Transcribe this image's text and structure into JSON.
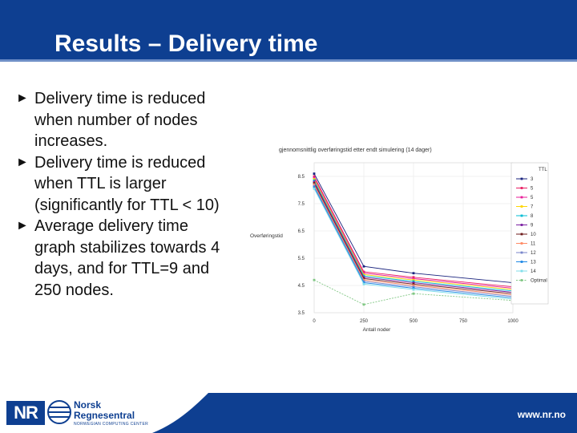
{
  "slide": {
    "title": "Results – Delivery time",
    "bullets": [
      {
        "lines": [
          "Delivery time is reduced",
          "when number of nodes",
          "increases."
        ]
      },
      {
        "lines": [
          "Delivery time is reduced",
          "when TTL is larger",
          "(significantly for TTL < 10)"
        ]
      },
      {
        "lines": [
          "Average delivery time",
          "graph stabilizes towards 4",
          "days, and for TTL=9 and",
          "250 nodes."
        ]
      }
    ],
    "bullet_marker": "►"
  },
  "footer": {
    "logo_text": "NR",
    "logo_name_line1": "Norsk",
    "logo_name_line2": "Regnesentral",
    "logo_sub": "NORWEGIAN COMPUTING CENTER",
    "website": "www.nr.no",
    "brand_color": "#0e3f91"
  },
  "chart_data": {
    "type": "line",
    "title": "gjennomsnittlig overføringstid etter endt simulering (14 dager)",
    "xlabel": "Antall noder",
    "ylabel": "Overføringstid",
    "x": [
      0,
      250,
      500,
      1000
    ],
    "xticks": [
      "0",
      "250",
      "500",
      "750",
      "1000"
    ],
    "yticks": [
      "3.5",
      "4.5",
      "5.5",
      "6.5",
      "7.5",
      "8.5"
    ],
    "xlim": [
      0,
      1000
    ],
    "ylim": [
      3.5,
      9.0
    ],
    "grid": true,
    "legend_title": "TTL",
    "legend_position": "right",
    "series": [
      {
        "name": "3",
        "color": "#1a237e",
        "values": [
          8.6,
          5.2,
          4.95,
          4.6
        ]
      },
      {
        "name": "5",
        "color": "#e91e63",
        "values": [
          8.5,
          5.0,
          4.8,
          4.45
        ]
      },
      {
        "name": "5",
        "color": "#e91e9a",
        "values": [
          8.45,
          4.95,
          4.75,
          4.4
        ]
      },
      {
        "name": "7",
        "color": "#ffd600",
        "values": [
          8.4,
          4.9,
          4.7,
          4.35
        ]
      },
      {
        "name": "8",
        "color": "#00bcd4",
        "values": [
          8.35,
          4.85,
          4.65,
          4.3
        ]
      },
      {
        "name": "9",
        "color": "#7b1fa2",
        "values": [
          8.3,
          4.8,
          4.6,
          4.25
        ]
      },
      {
        "name": "10",
        "color": "#6d1b1b",
        "values": [
          8.25,
          4.75,
          4.55,
          4.2
        ]
      },
      {
        "name": "11",
        "color": "#ff8a65",
        "values": [
          8.2,
          4.7,
          4.5,
          4.15
        ]
      },
      {
        "name": "12",
        "color": "#7986cb",
        "values": [
          8.15,
          4.65,
          4.45,
          4.1
        ]
      },
      {
        "name": "13",
        "color": "#1e88e5",
        "values": [
          8.1,
          4.6,
          4.4,
          4.05
        ]
      },
      {
        "name": "14",
        "color": "#80deea",
        "values": [
          8.05,
          4.55,
          4.35,
          4.0
        ]
      },
      {
        "name": "Optimal",
        "color": "#81c784",
        "values": [
          4.7,
          3.8,
          4.2,
          3.95
        ]
      }
    ]
  }
}
